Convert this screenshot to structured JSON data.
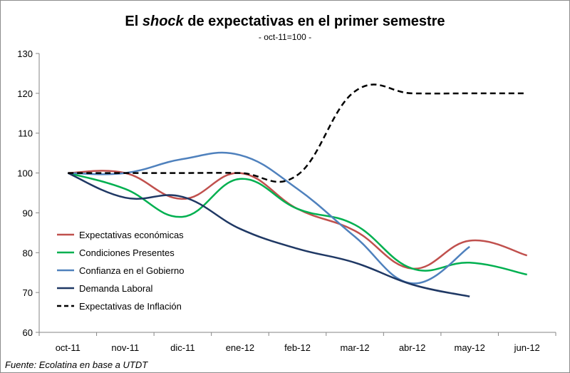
{
  "chart_data": {
    "type": "line",
    "title_prefix": "El ",
    "title_emphasis": "shock",
    "title_suffix": " de expectativas en el primer semestre",
    "subtitle": "- oct-11=100 -",
    "xlabel": "",
    "ylabel": "",
    "categories": [
      "oct-11",
      "nov-11",
      "dic-11",
      "ene-12",
      "feb-12",
      "mar-12",
      "abr-12",
      "may-12",
      "jun-12"
    ],
    "ylim": [
      60,
      130
    ],
    "yticks": [
      60,
      70,
      80,
      90,
      100,
      110,
      120,
      130
    ],
    "grid": false,
    "legend_position": "bottom-left",
    "series": [
      {
        "name": "Expectativas económicas",
        "color": "#c0504d",
        "dash": "solid",
        "values": [
          100,
          100,
          93.5,
          100,
          91,
          85.5,
          76,
          83,
          79.3
        ]
      },
      {
        "name": "Condiciones Presentes",
        "color": "#00b050",
        "dash": "solid",
        "values": [
          100,
          96,
          89,
          98.5,
          91,
          87,
          76,
          77.5,
          74.5
        ]
      },
      {
        "name": "Confianza en el Gobierno",
        "color": "#4f81bd",
        "dash": "solid",
        "values": [
          100,
          100,
          103.5,
          104.5,
          96,
          84,
          72.3,
          81.5,
          null
        ]
      },
      {
        "name": "Demanda Laboral",
        "color": "#1f3864",
        "dash": "solid",
        "values": [
          100,
          93.8,
          94,
          86,
          81,
          77.5,
          72,
          69,
          null
        ]
      },
      {
        "name": "Expectativas de Inflación",
        "color": "#000000",
        "dash": "dashed",
        "values": [
          100,
          100,
          100,
          100,
          99.5,
          120.5,
          120,
          120,
          120
        ]
      }
    ]
  },
  "source": "Fuente: Ecolatina en base a UTDT"
}
